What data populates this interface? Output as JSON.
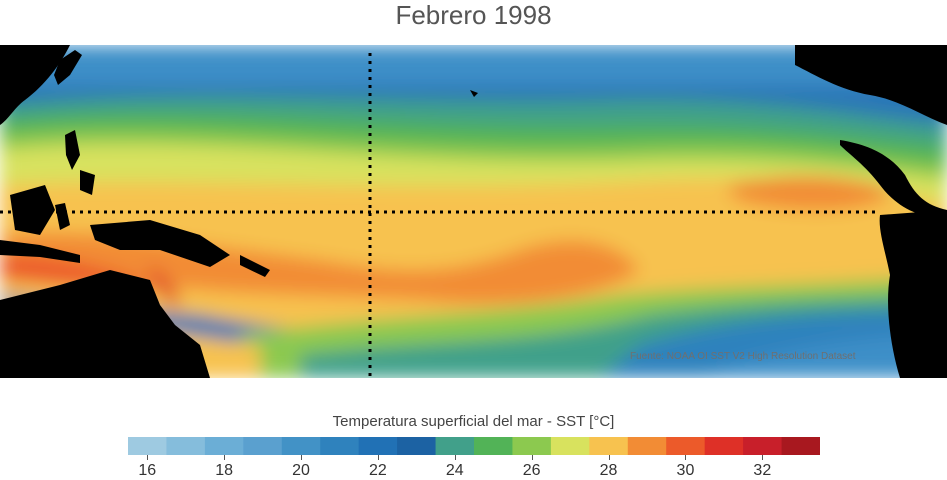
{
  "title": "Febrero 1998",
  "source_credit": "Fuente: NOAA OI SST V2 High Resolution Dataset",
  "colorbar": {
    "label": "Temperatura superficial del mar - SST  [°C]",
    "levels": [
      16,
      17,
      18,
      19,
      20,
      21,
      22,
      23,
      24,
      25,
      26,
      27,
      28,
      29,
      30,
      31,
      32
    ],
    "ticks": [
      "16",
      "18",
      "20",
      "22",
      "24",
      "26",
      "28",
      "30",
      "32"
    ],
    "colors": [
      "#9ecae1",
      "#85bddc",
      "#6baed6",
      "#5aa0cf",
      "#4292c6",
      "#2f82bd",
      "#2171b5",
      "#1c62a3",
      "#41a08a",
      "#52b357",
      "#8cc94f",
      "#d8e25e",
      "#f7c24f",
      "#f28c35",
      "#ec5a2a",
      "#de3027",
      "#c81f2a",
      "#a8181f"
    ]
  },
  "map": {
    "variable": "SST",
    "month": "Febrero",
    "year": "1998",
    "reference_lines": [
      "equator",
      "180° meridian"
    ]
  }
}
